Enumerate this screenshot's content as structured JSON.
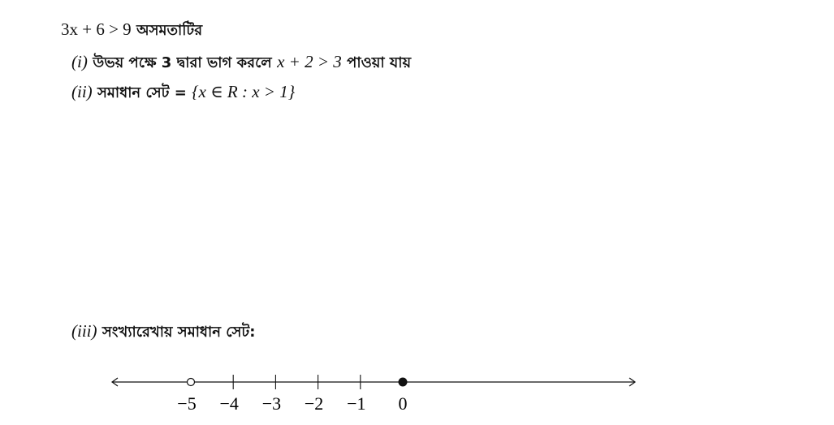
{
  "intro": {
    "math": "3x + 6 > 9",
    "text": "অসমতাটির"
  },
  "items": [
    {
      "label": "(i)",
      "text_before": "উভয় পক্ষে 3 দ্বারা ভাগ করলে",
      "math": "x + 2 > 3",
      "text_after": "পাওয়া যায়"
    },
    {
      "label": "(ii)",
      "text_before": "সমাধান সেট =",
      "math": "{x ∈ R : x > 1}",
      "text_after": ""
    },
    {
      "label": "(iii)",
      "text_before": "সংখ্যারেখায় সমাধান সেট:",
      "math": "",
      "text_after": ""
    }
  ],
  "number_line": {
    "ticks": [
      "−5",
      "−4",
      "−3",
      "−2",
      "−1",
      "0"
    ],
    "open_point": "−5",
    "closed_point": "0",
    "arrows": "both"
  }
}
